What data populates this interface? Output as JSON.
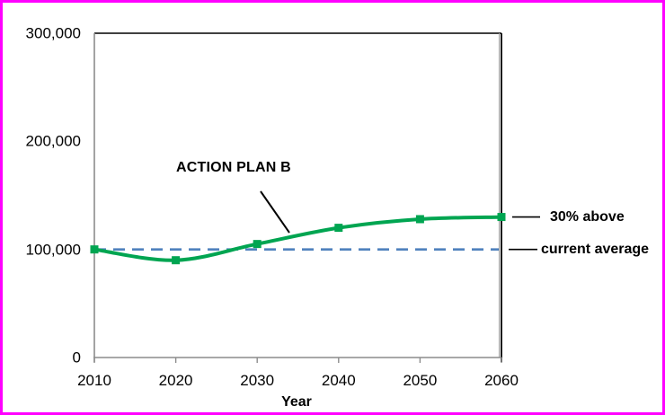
{
  "chart_data": {
    "type": "line",
    "title": "",
    "x": [
      2010,
      2020,
      2030,
      2040,
      2050,
      2060
    ],
    "series": [
      {
        "name": "ACTION PLAN B",
        "values": [
          100000,
          90000,
          105000,
          120000,
          128000,
          130000
        ],
        "color": "#00a551",
        "marker": "square",
        "smooth": true
      }
    ],
    "reference_line": {
      "label": "current average",
      "value": 100000,
      "color": "#4f81bd",
      "style": "dashed"
    },
    "end_annotation": {
      "label": "30% above",
      "value": 130000
    },
    "xlabel": "Year",
    "ylabel": "",
    "xlim": [
      2010,
      2060
    ],
    "ylim": [
      0,
      300000
    ],
    "x_ticks": [
      {
        "value": 2010,
        "label": "2010"
      },
      {
        "value": 2020,
        "label": "2020"
      },
      {
        "value": 2030,
        "label": "2030"
      },
      {
        "value": 2040,
        "label": "2040"
      },
      {
        "value": 2050,
        "label": "2050"
      },
      {
        "value": 2060,
        "label": "2060"
      }
    ],
    "y_ticks": [
      {
        "value": 300000,
        "label": "300,000"
      },
      {
        "value": 200000,
        "label": "200,000"
      },
      {
        "value": 100000,
        "label": "100,000"
      },
      {
        "value": 0,
        "label": "0"
      }
    ],
    "grid": false,
    "legend": "none"
  },
  "labels": {
    "series_annotation": "ACTION PLAN B",
    "above_label": "30% above",
    "average_label": "current average",
    "x_axis_title": "Year"
  },
  "colors": {
    "frame_border": "#ff00ff",
    "series_green": "#00a551",
    "reference_blue": "#4f81bd",
    "axis_gray": "#8c8c8c",
    "border_black": "#000000",
    "text": "#000000",
    "background": "#ffffff"
  }
}
